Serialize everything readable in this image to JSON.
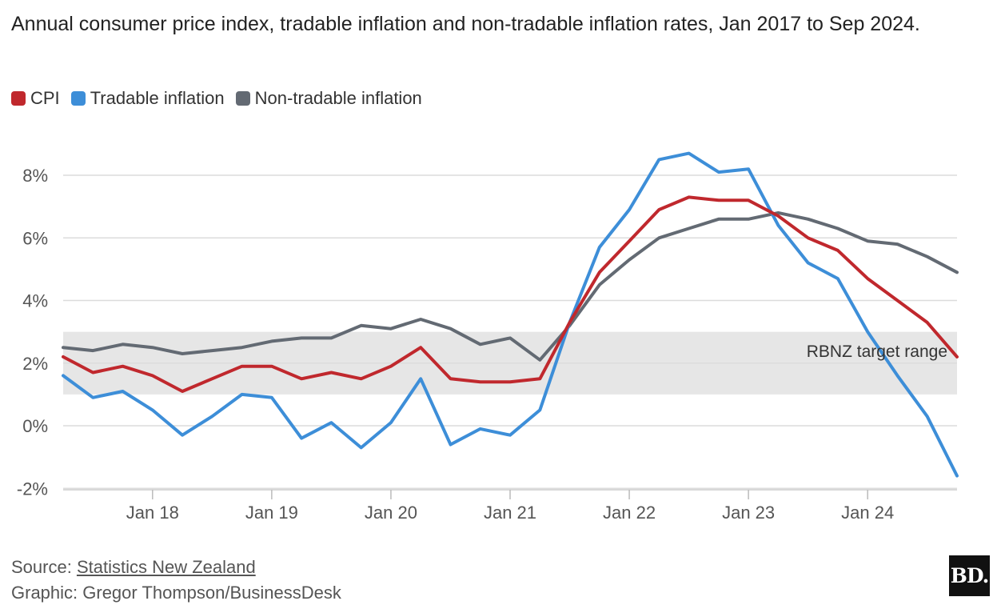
{
  "chart_data": {
    "type": "line",
    "title": "Annual consumer price index, tradable inflation and non-tradable inflation rates, Jan 2017 to Sep 2024.",
    "xlabel": "",
    "ylabel": "",
    "x_tick_labels": [
      "Jan 18",
      "Jan 19",
      "Jan 20",
      "Jan 21",
      "Jan 22",
      "Jan 23",
      "Jan 24"
    ],
    "x_tick_positions": [
      1,
      5,
      9,
      13,
      17,
      21,
      25
    ],
    "y_tick_labels": [
      "8%",
      "6%",
      "4%",
      "2%",
      "0%",
      "-2%"
    ],
    "y_tick_values": [
      8,
      6,
      4,
      2,
      0,
      -2
    ],
    "ylim": [
      -2.2,
      9.3
    ],
    "xlim": [
      -2,
      28
    ],
    "grid": true,
    "x": [
      -2,
      -1,
      0,
      1,
      2,
      3,
      4,
      5,
      6,
      7,
      8,
      9,
      10,
      11,
      12,
      13,
      14,
      15,
      16,
      17,
      18,
      19,
      20,
      21,
      22,
      23,
      24,
      25,
      26,
      27,
      28
    ],
    "series": [
      {
        "name": "CPI",
        "color": "#c0282d",
        "values": [
          2.2,
          1.7,
          1.9,
          1.6,
          1.1,
          1.5,
          1.9,
          1.9,
          1.5,
          1.7,
          1.5,
          1.9,
          2.5,
          1.5,
          1.4,
          1.4,
          1.5,
          3.3,
          4.9,
          5.9,
          6.9,
          7.3,
          7.2,
          7.2,
          6.7,
          6.0,
          5.6,
          4.7,
          4.0,
          3.3,
          2.2
        ]
      },
      {
        "name": "Tradable inflation",
        "color": "#3d8ed8",
        "values": [
          1.6,
          0.9,
          1.1,
          0.5,
          -0.3,
          0.3,
          1.0,
          0.9,
          -0.4,
          0.1,
          -0.7,
          0.1,
          1.5,
          -0.6,
          -0.1,
          -0.3,
          0.5,
          3.3,
          5.7,
          6.9,
          8.5,
          8.7,
          8.1,
          8.2,
          6.4,
          5.2,
          4.7,
          3.0,
          1.6,
          0.3,
          -1.6
        ]
      },
      {
        "name": "Non-tradable inflation",
        "color": "#636a73",
        "values": [
          2.5,
          2.4,
          2.6,
          2.5,
          2.3,
          2.4,
          2.5,
          2.7,
          2.8,
          2.8,
          3.2,
          3.1,
          3.4,
          3.1,
          2.6,
          2.8,
          2.1,
          3.2,
          4.5,
          5.3,
          6.0,
          6.3,
          6.6,
          6.6,
          6.8,
          6.6,
          6.3,
          5.9,
          5.8,
          5.4,
          4.9
        ]
      }
    ],
    "target_range": {
      "label": "RBNZ target range",
      "low": 1,
      "high": 3,
      "color": "#e6e6e6"
    }
  },
  "legend": {
    "items": [
      {
        "label": "CPI",
        "color": "#c0282d"
      },
      {
        "label": "Tradable inflation",
        "color": "#3d8ed8"
      },
      {
        "label": "Non-tradable inflation",
        "color": "#636a73"
      }
    ]
  },
  "footer": {
    "source_prefix": "Source: ",
    "source_link": "Statistics New Zealand",
    "graphic_credit": "Graphic: Gregor Thompson/BusinessDesk"
  },
  "logo": {
    "text": "BD."
  }
}
